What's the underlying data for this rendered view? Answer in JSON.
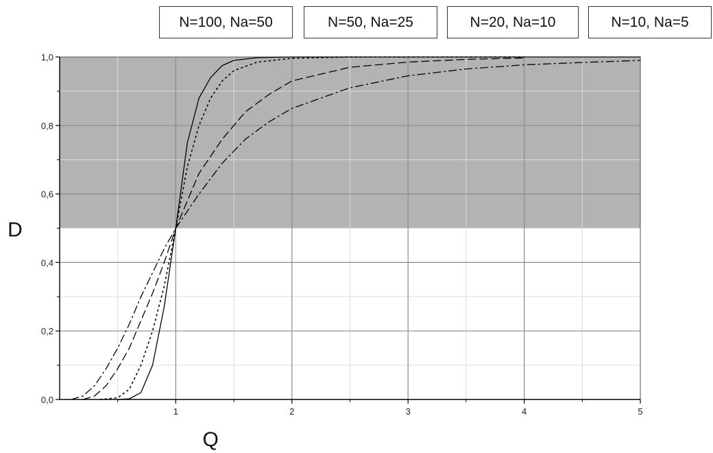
{
  "chart_data": {
    "type": "line",
    "xlabel": "Q",
    "ylabel": "D",
    "xlim": [
      0,
      5
    ],
    "ylim": [
      0,
      1
    ],
    "x_ticks": [
      "1",
      "2",
      "3",
      "4",
      "5"
    ],
    "y_ticks": [
      "0,0",
      "0,2",
      "0,4",
      "0,6",
      "0,8",
      "1,0"
    ],
    "grid": true,
    "shaded_region": {
      "y_from": 0.5,
      "y_to": 1.0,
      "color": "#b3b3b3"
    },
    "legend": [
      "N=100, Na=50",
      "N=50, Na=25",
      "N=20, Na=10",
      "N=10, Na=5"
    ],
    "series": [
      {
        "name": "N=100, Na=50",
        "style": "solid",
        "x": [
          0.5,
          0.6,
          0.7,
          0.8,
          0.9,
          1.0,
          1.1,
          1.2,
          1.3,
          1.4,
          1.5,
          1.7,
          2.0,
          3.0,
          4.0,
          5.0
        ],
        "y": [
          0.0,
          0.002,
          0.02,
          0.1,
          0.27,
          0.5,
          0.75,
          0.88,
          0.94,
          0.975,
          0.99,
          0.998,
          1.0,
          1.0,
          1.0,
          1.0
        ]
      },
      {
        "name": "N=50, Na=25",
        "style": "dotted",
        "x": [
          0.35,
          0.5,
          0.6,
          0.7,
          0.8,
          0.9,
          1.0,
          1.1,
          1.2,
          1.3,
          1.4,
          1.5,
          1.7,
          2.0,
          2.5,
          3.0,
          4.0
        ],
        "y": [
          0.0,
          0.005,
          0.03,
          0.1,
          0.2,
          0.33,
          0.5,
          0.68,
          0.8,
          0.88,
          0.93,
          0.96,
          0.985,
          0.996,
          1.0,
          1.0,
          1.0
        ]
      },
      {
        "name": "N=20, Na=10",
        "style": "dashed",
        "x": [
          0.2,
          0.3,
          0.4,
          0.5,
          0.6,
          0.7,
          0.8,
          0.9,
          1.0,
          1.2,
          1.4,
          1.6,
          1.8,
          2.0,
          2.5,
          3.0,
          3.5,
          4.0
        ],
        "y": [
          0.0,
          0.01,
          0.04,
          0.09,
          0.15,
          0.23,
          0.31,
          0.4,
          0.5,
          0.66,
          0.76,
          0.84,
          0.89,
          0.93,
          0.97,
          0.985,
          0.993,
          0.997
        ]
      },
      {
        "name": "N=10, Na=5",
        "style": "dashdot",
        "x": [
          0.1,
          0.2,
          0.3,
          0.4,
          0.5,
          0.6,
          0.7,
          0.8,
          0.9,
          1.0,
          1.2,
          1.4,
          1.6,
          1.8,
          2.0,
          2.5,
          3.0,
          3.5,
          4.0,
          4.5,
          5.0
        ],
        "y": [
          0.0,
          0.01,
          0.04,
          0.09,
          0.15,
          0.22,
          0.3,
          0.37,
          0.44,
          0.5,
          0.6,
          0.69,
          0.76,
          0.81,
          0.85,
          0.91,
          0.945,
          0.965,
          0.977,
          0.984,
          0.99
        ]
      }
    ]
  }
}
